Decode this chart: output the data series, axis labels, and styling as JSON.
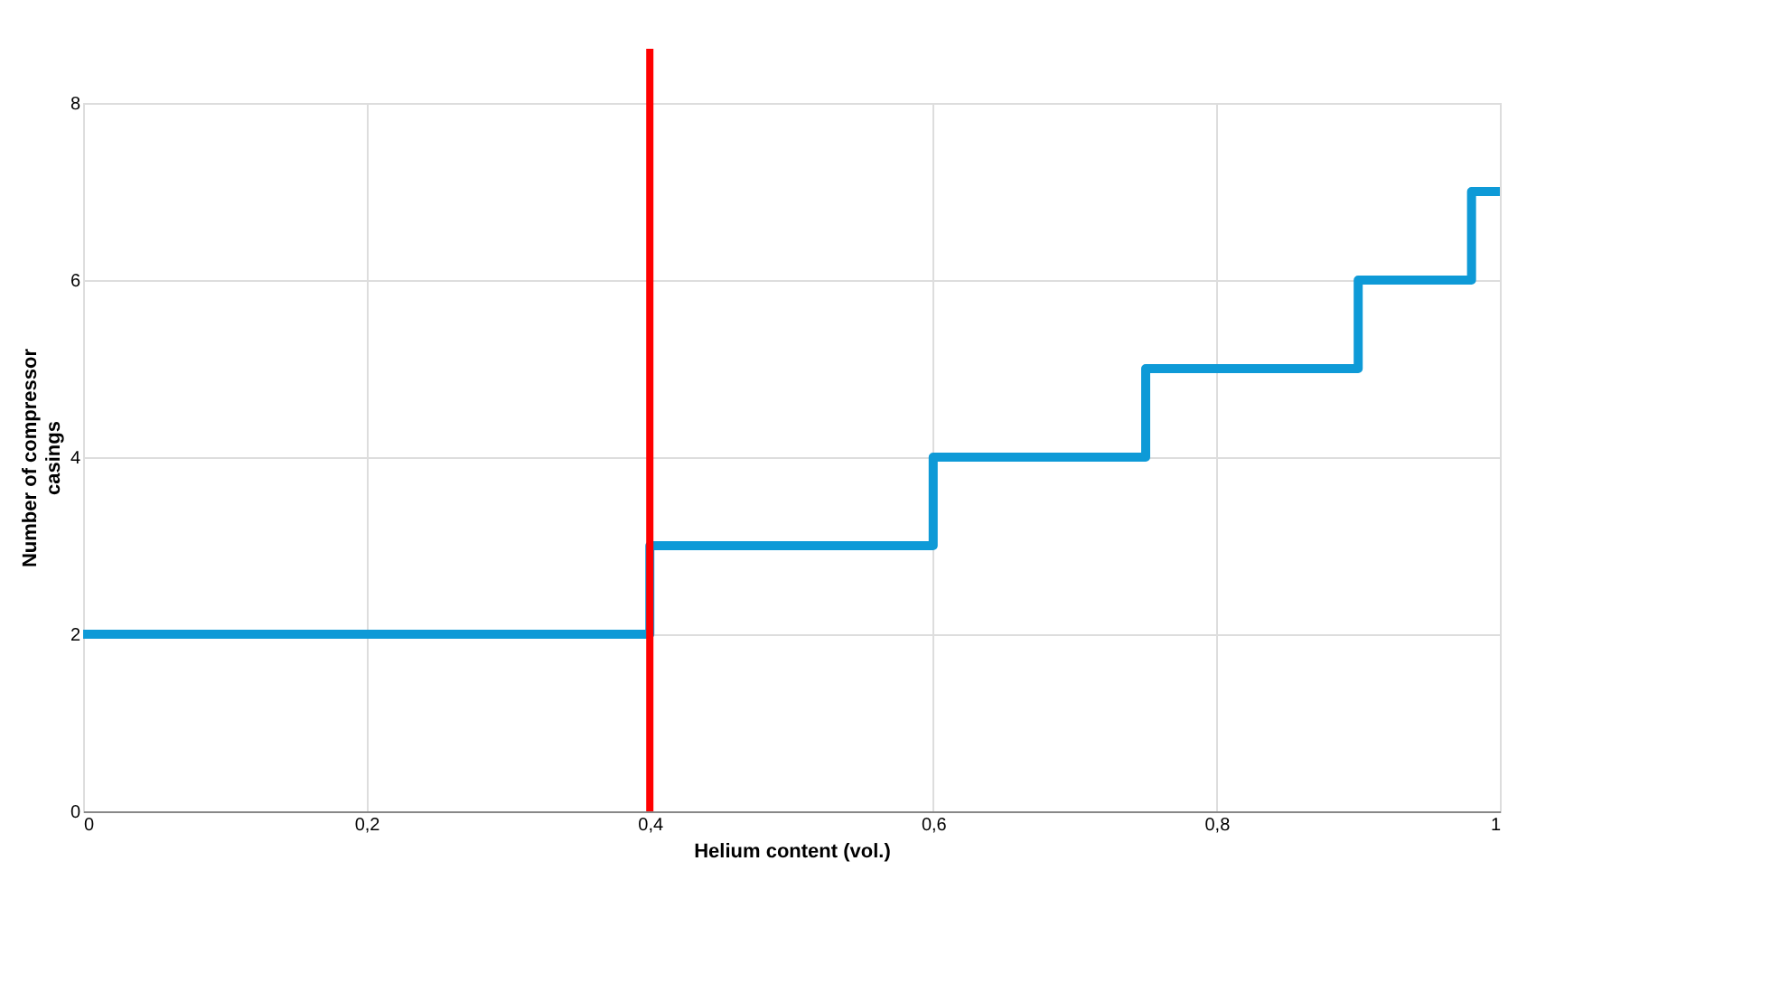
{
  "chart_data": {
    "type": "step",
    "xlabel": "Helium content (vol.)",
    "ylabel": "Number of compressor casings",
    "x": [
      0,
      0.4,
      0.6,
      0.75,
      0.9,
      0.98,
      1
    ],
    "series": [
      {
        "color": "#0e9ad7",
        "values": [
          2,
          3,
          4,
          5,
          6,
          7,
          7
        ]
      }
    ],
    "xlim": [
      0,
      1
    ],
    "xticks": [
      0,
      {
        "value": 0.2,
        "label": "0,2"
      },
      {
        "value": 0.4,
        "label": "0,4"
      },
      {
        "value": 0.6,
        "label": "0,6"
      },
      {
        "value": 0.8,
        "label": "0,8"
      },
      1
    ],
    "ylim": [
      0,
      8
    ],
    "yticks": [
      0,
      2,
      4,
      6,
      8
    ],
    "grid": true,
    "line_style": "solid",
    "marker": "none",
    "ref_lines": [
      {
        "axis": "x",
        "value": 0.4,
        "color": "#ff0000",
        "line_style": "solid"
      }
    ]
  }
}
